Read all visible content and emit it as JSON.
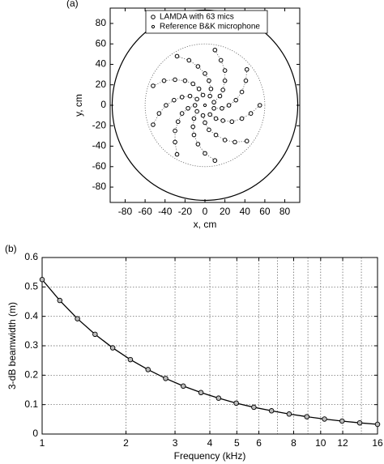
{
  "chart_data": [
    {
      "type": "scatter",
      "label": "(a)",
      "xlabel": "x, cm",
      "ylabel": "y, cm",
      "xlim": [
        -95,
        95
      ],
      "ylim": [
        -95,
        95
      ],
      "xticks": [
        -80,
        -60,
        -40,
        -20,
        0,
        20,
        40,
        60,
        80
      ],
      "yticks": [
        -80,
        -60,
        -40,
        -20,
        0,
        20,
        40,
        60,
        80
      ],
      "circles": [
        {
          "radius": 93,
          "style": "solid"
        },
        {
          "radius": 60,
          "style": "dotted"
        }
      ],
      "legend": "upper center",
      "series": [
        {
          "name": "LAMDA with 63 mics",
          "color": "#000000",
          "connect": "dotted",
          "x": [
            55,
            46,
            37,
            27,
            18,
            11,
            5,
            null,
            42,
            41,
            37,
            31,
            24,
            17,
            9,
            null,
            10,
            16,
            20,
            20,
            18,
            15,
            9,
            null,
            -28,
            -16,
            -7,
            0,
            4,
            6,
            5,
            null,
            -52,
            -41,
            -30,
            -20,
            -12,
            -6,
            -2,
            null,
            -52,
            -46,
            -39,
            -31,
            -23,
            -15,
            -8,
            null,
            -28,
            -30,
            -30,
            -27,
            -23,
            -17,
            -10,
            null,
            10,
            0,
            -7,
            -11,
            -12,
            -11,
            -8,
            null,
            42,
            30,
            20,
            11,
            4,
            0,
            -2
          ],
          "y": [
            0,
            -8,
            -13,
            -16,
            -15,
            -13,
            -9,
            null,
            35,
            24,
            13,
            5,
            0,
            -3,
            -3,
            null,
            54,
            44,
            34,
            24,
            15,
            9,
            3,
            null,
            48,
            44,
            38,
            31,
            24,
            16,
            9,
            null,
            19,
            24,
            25,
            24,
            21,
            16,
            10,
            null,
            -19,
            -8,
            0,
            5,
            8,
            9,
            6,
            null,
            -48,
            -36,
            -25,
            -16,
            -8,
            -3,
            0,
            null,
            -54,
            -47,
            -38,
            -29,
            -21,
            -13,
            -6,
            null,
            -35,
            -36,
            -34,
            -29,
            -24,
            -17,
            -10
          ]
        },
        {
          "name": "Reference B&K microphone",
          "color": "#000000",
          "x": [
            0
          ],
          "y": [
            0
          ]
        }
      ]
    },
    {
      "type": "line",
      "label": "(b)",
      "xlabel": "Frequency (kHz)",
      "ylabel": "3-dB beamwidth (m)",
      "log_x": true,
      "grid": true,
      "xlim": [
        1,
        16
      ],
      "ylim": [
        0,
        0.6
      ],
      "xticks": [
        1,
        2,
        3,
        4,
        5,
        6,
        8,
        10,
        12,
        16
      ],
      "xminor": [
        7,
        9,
        14
      ],
      "yticks": [
        0,
        0.1,
        0.2,
        0.3,
        0.4,
        0.5,
        0.6
      ],
      "series": [
        {
          "color": "#000000",
          "x": [
            1,
            1.157,
            1.339,
            1.549,
            1.792,
            2.074,
            2.4,
            2.776,
            3.212,
            3.717,
            4.3,
            4.976,
            5.757,
            6.661,
            7.707,
            8.918,
            10.32,
            11.94,
            13.81,
            16
          ],
          "values": [
            0.525,
            0.454,
            0.392,
            0.339,
            0.293,
            0.253,
            0.219,
            0.189,
            0.163,
            0.141,
            0.122,
            0.105,
            0.091,
            0.079,
            0.068,
            0.059,
            0.051,
            0.044,
            0.038,
            0.033
          ]
        }
      ]
    }
  ]
}
